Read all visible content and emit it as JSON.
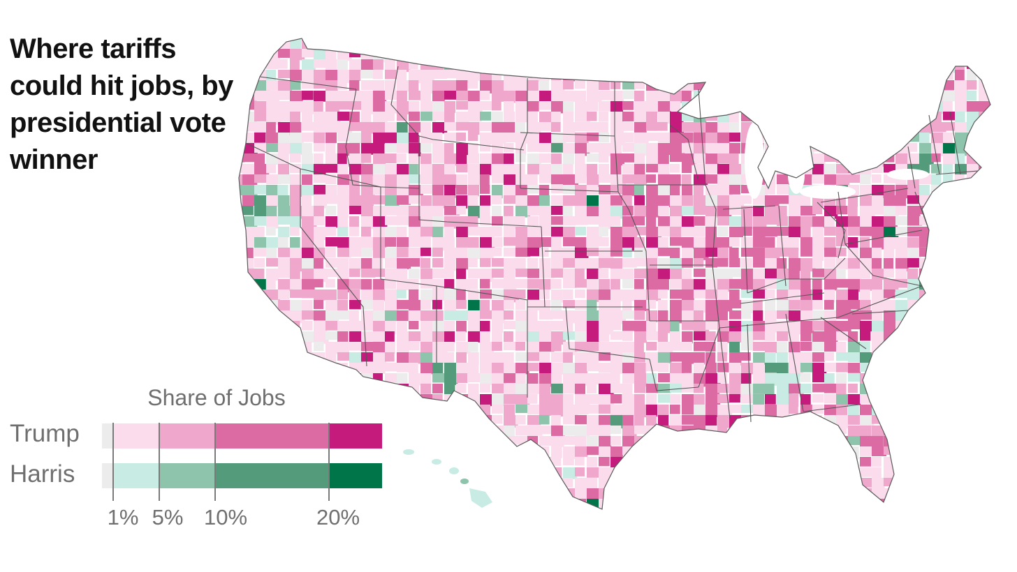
{
  "title": "Where tariffs could hit jobs, by presidential vote winner",
  "legend": {
    "title": "Share of Jobs",
    "rows": [
      {
        "label": "Trump",
        "colors": [
          "#ececec",
          "#fbdcec",
          "#f0a7cc",
          "#dc6aa3",
          "#c51b7d"
        ]
      },
      {
        "label": "Harris",
        "colors": [
          "#ececec",
          "#c8ebe3",
          "#8dc4ab",
          "#539b7b",
          "#00754a"
        ]
      }
    ],
    "thresholds": [
      {
        "value": 1,
        "label": "1%"
      },
      {
        "value": 5,
        "label": "5%"
      },
      {
        "value": 10,
        "label": "10%"
      },
      {
        "value": 20,
        "label": "20%"
      }
    ]
  },
  "map": {
    "region": "United States (counties)",
    "state_border_color": "#555555"
  }
}
